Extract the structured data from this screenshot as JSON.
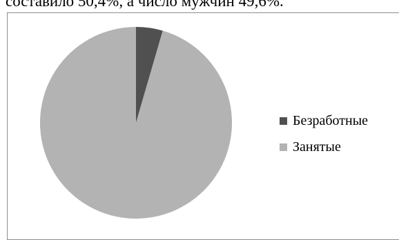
{
  "header_text": "составило 50,4%, а число мужчин 49,6%.",
  "chart_data": {
    "type": "pie",
    "title": "",
    "slices": [
      {
        "label": "Безработные",
        "value": 4.5,
        "color": "#505050"
      },
      {
        "label": "Занятые",
        "value": 95.5,
        "color": "#b3b3b3"
      }
    ],
    "start_angle_deg": 0,
    "direction": "clockwise",
    "legend_position": "right"
  }
}
